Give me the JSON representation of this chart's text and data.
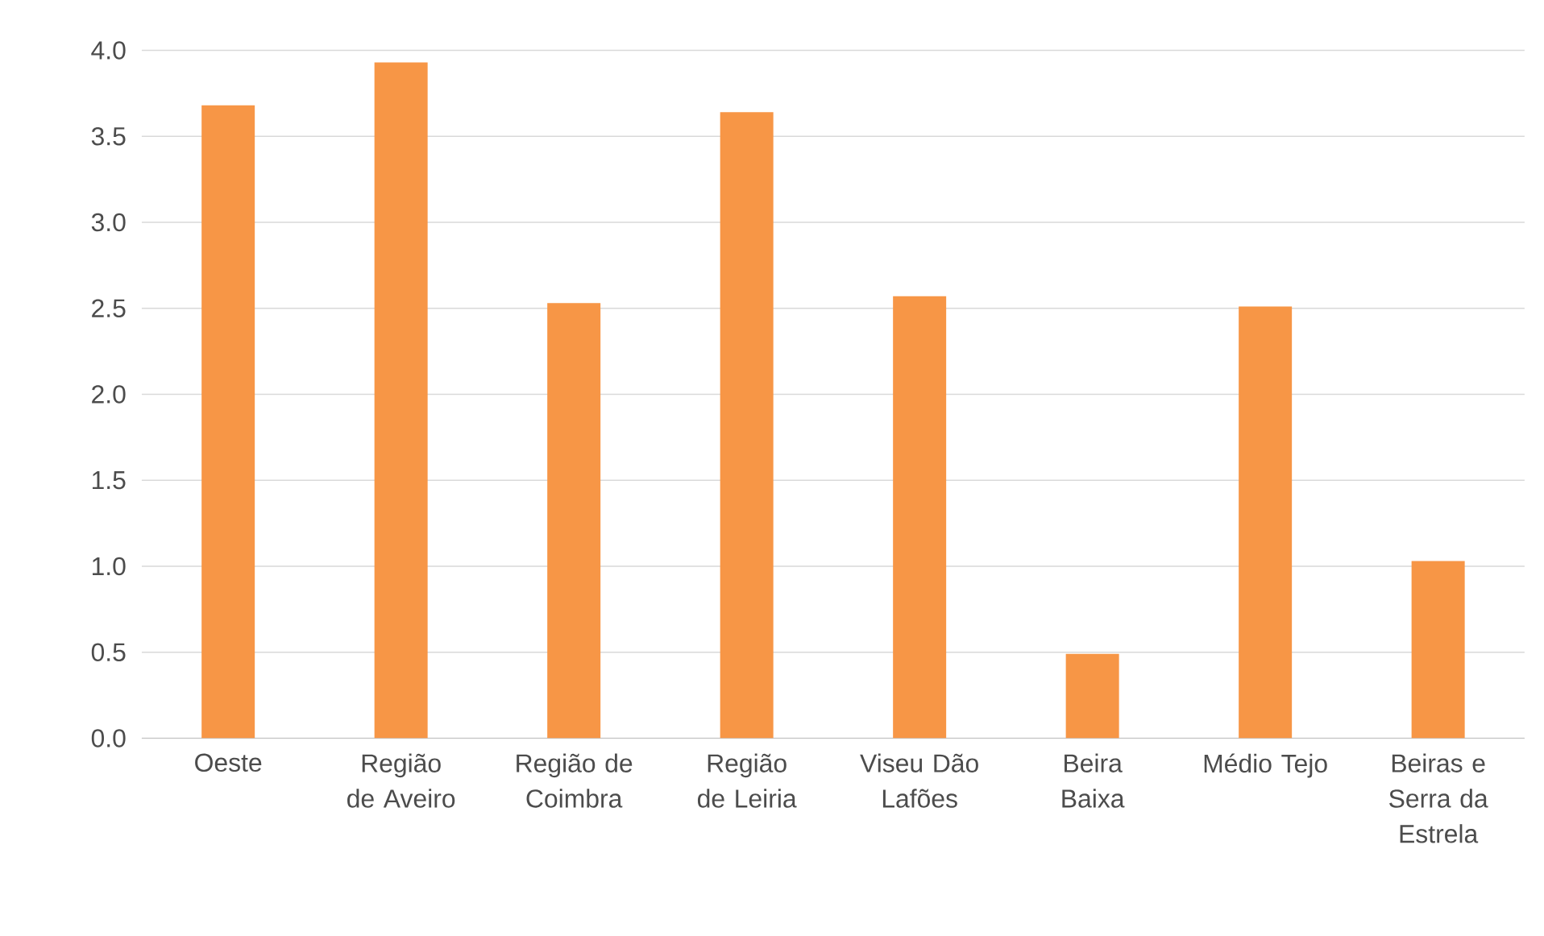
{
  "chart_data": {
    "type": "bar",
    "categories": [
      "Oeste",
      "Região de Aveiro",
      "Região de Coimbra",
      "Região de Leiria",
      "Viseu Dão Lafões",
      "Beira Baixa",
      "Médio Tejo",
      "Beiras e Serra da Estrela"
    ],
    "values": [
      3.68,
      3.93,
      2.53,
      3.64,
      2.57,
      0.49,
      2.51,
      1.03
    ],
    "color": "#f79646",
    "ylim": [
      0,
      4
    ],
    "yticks": [
      {
        "value": 0,
        "label": "0.0"
      },
      0.5,
      {
        "value": 1,
        "label": "1.0"
      },
      1.5,
      {
        "value": 2,
        "label": "2.0"
      },
      2.5,
      {
        "value": 3,
        "label": "3.0"
      },
      3.5,
      {
        "value": 4,
        "label": "4.0"
      }
    ],
    "grid": "y"
  }
}
